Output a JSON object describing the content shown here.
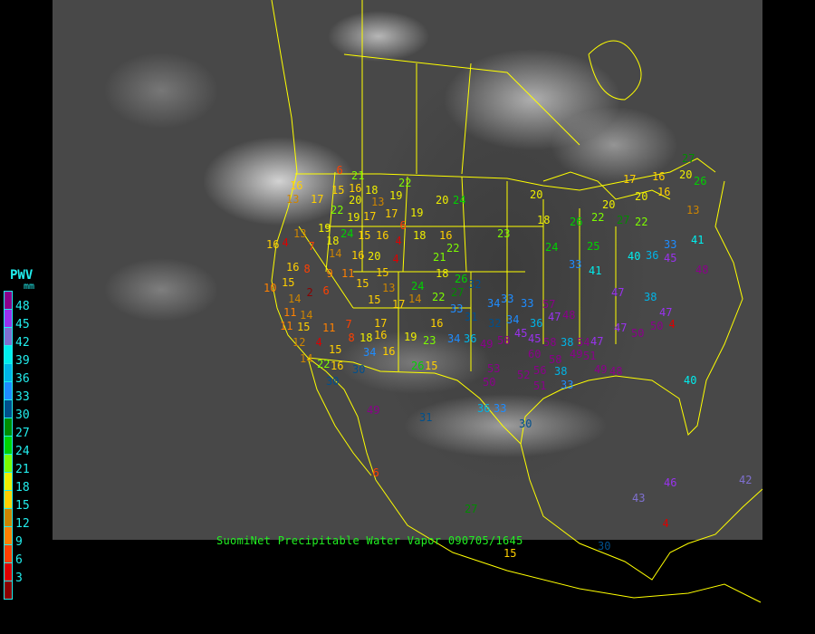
{
  "caption": "SuomiNet Precipitable Water Vapor 090705/1645",
  "legend": {
    "title": "PWV",
    "unit": "mm",
    "labels": [
      "48",
      "45",
      "42",
      "39",
      "36",
      "33",
      "30",
      "27",
      "24",
      "21",
      "18",
      "15",
      "12",
      "9",
      "6",
      "3"
    ],
    "colors": [
      "#8b008b",
      "#9932ee",
      "#7f70d0",
      "#00eeee",
      "#00b4e6",
      "#1e8cff",
      "#00508c",
      "#008c00",
      "#00d200",
      "#7cfc00",
      "#eeee00",
      "#ffd000",
      "#cd8500",
      "#ff8000",
      "#ff4000",
      "#dd0000",
      "#8b0000"
    ]
  },
  "stations": [
    "6",
    "21",
    "22",
    "20",
    "24",
    "16",
    "13",
    "17",
    "15",
    "16",
    "20",
    "18",
    "13",
    "19",
    "22",
    "19",
    "17",
    "17",
    "19",
    "6",
    "19",
    "24",
    "15",
    "18",
    "16",
    "4",
    "18",
    "16",
    "22",
    "23",
    "16",
    "4",
    "13",
    "7",
    "14",
    "16",
    "20",
    "15",
    "4",
    "21",
    "18",
    "26",
    "16",
    "15",
    "10",
    "8",
    "9",
    "11",
    "15",
    "15",
    "13",
    "24",
    "32",
    "14",
    "2",
    "6",
    "17",
    "14",
    "22",
    "27",
    "33",
    "34",
    "33",
    "33",
    "11",
    "14",
    "11",
    "15",
    "7",
    "17",
    "16",
    "31",
    "32",
    "34",
    "36",
    "48",
    "47",
    "12",
    "11",
    "4",
    "14",
    "8",
    "18",
    "16",
    "19",
    "23",
    "34",
    "36",
    "49",
    "50",
    "45",
    "45",
    "58",
    "38",
    "54",
    "60",
    "57",
    "22",
    "15",
    "16",
    "34",
    "16",
    "26",
    "15",
    "53",
    "56",
    "58",
    "49",
    "51",
    "47",
    "47",
    "50",
    "50",
    "4",
    "47",
    "47",
    "38",
    "33",
    "41",
    "24",
    "25",
    "40",
    "36",
    "45",
    "33",
    "41",
    "48",
    "50",
    "52",
    "51",
    "38",
    "33",
    "49",
    "48",
    "36",
    "33",
    "30",
    "31",
    "49",
    "30",
    "30",
    "40",
    "18",
    "20",
    "26",
    "22",
    "20",
    "27",
    "22",
    "20",
    "16",
    "16",
    "17",
    "20",
    "27",
    "13",
    "26",
    "43",
    "46",
    "42",
    "4",
    "30",
    "27",
    "15",
    "6"
  ]
}
